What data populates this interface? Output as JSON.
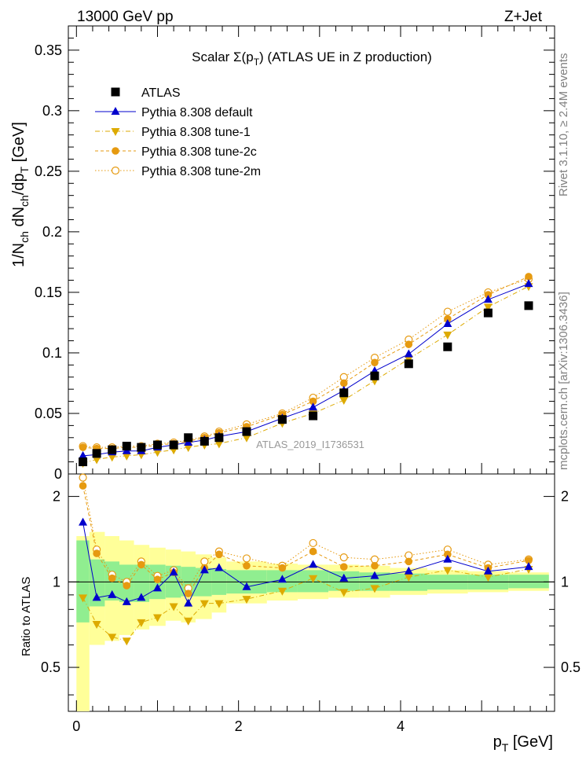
{
  "header": {
    "left": "13000 GeV pp",
    "right": "Z+Jet"
  },
  "side_labels": {
    "rivet": "Rivet 3.1.10, ≥ 2.4M events",
    "mcplots": "mcplots.cern.ch [arXiv:1306.3436]"
  },
  "chart_data": {
    "type": "scatter",
    "title": "Scalar Σ(p_T) (ATLAS UE in Z production)",
    "watermark": "ATLAS_2019_I1736531",
    "xlabel": "p_T [GeV]",
    "ylabel": "1/N_ch dN_ch/dp_T [GeV]",
    "ratio_ylabel": "Ratio to ATLAS",
    "xlim": [
      -0.1,
      5.9
    ],
    "ylim": [
      0,
      0.37
    ],
    "ratio_ylim": [
      0.35,
      2.4
    ],
    "x_ticks": [
      "0",
      "2",
      "4"
    ],
    "y_ticks": [
      "0",
      "0.05",
      "0.1",
      "0.15",
      "0.2",
      "0.25",
      "0.3",
      "0.35"
    ],
    "ratio_ticks": [
      "0.5",
      "1",
      "2"
    ],
    "legend_position": "top-left",
    "x": [
      0.08,
      0.25,
      0.44,
      0.62,
      0.8,
      1.0,
      1.2,
      1.38,
      1.58,
      1.76,
      2.1,
      2.54,
      2.92,
      3.3,
      3.68,
      4.1,
      4.58,
      5.08,
      5.58
    ],
    "series": [
      {
        "name": "ATLAS",
        "style": "data",
        "color": "#000000",
        "values": [
          0.01,
          0.017,
          0.02,
          0.023,
          0.022,
          0.024,
          0.024,
          0.03,
          0.027,
          0.03,
          0.035,
          0.045,
          0.048,
          0.067,
          0.081,
          0.091,
          0.105,
          0.133,
          0.139
        ]
      },
      {
        "name": "Pythia 8.308 default",
        "style": "solid-triangle-up",
        "color": "#0000cc",
        "values": [
          0.015,
          0.016,
          0.018,
          0.019,
          0.019,
          0.022,
          0.024,
          0.026,
          0.028,
          0.031,
          0.035,
          0.046,
          0.055,
          0.069,
          0.085,
          0.099,
          0.124,
          0.144,
          0.157
        ]
      },
      {
        "name": "Pythia 8.308 tune-1",
        "style": "dashdot-triangle-down",
        "color": "#ddaa00",
        "values": [
          0.009,
          0.012,
          0.014,
          0.015,
          0.016,
          0.018,
          0.02,
          0.022,
          0.024,
          0.025,
          0.03,
          0.042,
          0.05,
          0.061,
          0.077,
          0.095,
          0.115,
          0.138,
          0.155
        ]
      },
      {
        "name": "Pythia 8.308 tune-2c",
        "style": "dash-filled-circle",
        "color": "#e69a10",
        "values": [
          0.022,
          0.021,
          0.021,
          0.022,
          0.022,
          0.024,
          0.025,
          0.027,
          0.03,
          0.034,
          0.039,
          0.049,
          0.06,
          0.075,
          0.092,
          0.107,
          0.128,
          0.148,
          0.163
        ]
      },
      {
        "name": "Pythia 8.308 tune-2m",
        "style": "dot-open-circle",
        "color": "#e69a10",
        "values": [
          0.023,
          0.022,
          0.022,
          0.023,
          0.023,
          0.025,
          0.026,
          0.028,
          0.031,
          0.035,
          0.041,
          0.05,
          0.063,
          0.08,
          0.096,
          0.111,
          0.134,
          0.15,
          0.161
        ]
      }
    ],
    "ratio_series": [
      {
        "name": "Pythia 8.308 default",
        "values": [
          1.62,
          0.88,
          0.9,
          0.85,
          0.88,
          0.95,
          1.08,
          0.84,
          1.1,
          1.12,
          0.96,
          1.02,
          1.15,
          1.03,
          1.05,
          1.09,
          1.2,
          1.09,
          1.13
        ]
      },
      {
        "name": "Pythia 8.308 tune-1",
        "values": [
          0.88,
          0.71,
          0.64,
          0.62,
          0.72,
          0.75,
          0.82,
          0.73,
          0.84,
          0.84,
          0.87,
          0.93,
          1.03,
          0.92,
          0.95,
          1.04,
          1.1,
          1.04,
          1.11
        ]
      },
      {
        "name": "Pythia 8.308 tune-2c",
        "values": [
          2.18,
          1.26,
          1.03,
          0.97,
          1.15,
          1.02,
          1.08,
          0.91,
          1.12,
          1.25,
          1.14,
          1.12,
          1.28,
          1.13,
          1.14,
          1.18,
          1.25,
          1.12,
          1.19
        ]
      },
      {
        "name": "Pythia 8.308 tune-2m",
        "values": [
          2.33,
          1.3,
          1.06,
          1.0,
          1.18,
          1.05,
          1.1,
          0.95,
          1.18,
          1.28,
          1.21,
          1.14,
          1.37,
          1.22,
          1.2,
          1.24,
          1.3,
          1.15,
          1.2
        ]
      }
    ],
    "bands": {
      "bin_edges": [
        0.0,
        0.16,
        0.35,
        0.53,
        0.71,
        0.9,
        1.1,
        1.29,
        1.47,
        1.67,
        1.85,
        2.35,
        2.73,
        3.11,
        3.49,
        3.87,
        4.33,
        4.83,
        5.33,
        5.83
      ],
      "inner_low": [
        0.72,
        0.82,
        0.86,
        0.85,
        0.85,
        0.87,
        0.88,
        0.89,
        0.89,
        0.9,
        0.91,
        0.92,
        0.92,
        0.93,
        0.93,
        0.93,
        0.94,
        0.94,
        0.95
      ],
      "inner_high": [
        1.4,
        1.2,
        1.18,
        1.15,
        1.15,
        1.15,
        1.14,
        1.13,
        1.12,
        1.11,
        1.1,
        1.1,
        1.1,
        1.09,
        1.08,
        1.07,
        1.06,
        1.06,
        1.06
      ],
      "outer_low": [
        0.35,
        0.6,
        0.62,
        0.65,
        0.68,
        0.7,
        0.73,
        0.72,
        0.74,
        0.78,
        0.84,
        0.86,
        0.87,
        0.88,
        0.88,
        0.9,
        0.91,
        0.92,
        0.93
      ],
      "outer_high": [
        1.45,
        1.5,
        1.45,
        1.4,
        1.35,
        1.32,
        1.3,
        1.28,
        1.25,
        1.22,
        1.18,
        1.16,
        1.15,
        1.15,
        1.14,
        1.12,
        1.1,
        1.09,
        1.08
      ],
      "inner_color": "#90ee90",
      "outer_color": "#ffff99"
    }
  }
}
